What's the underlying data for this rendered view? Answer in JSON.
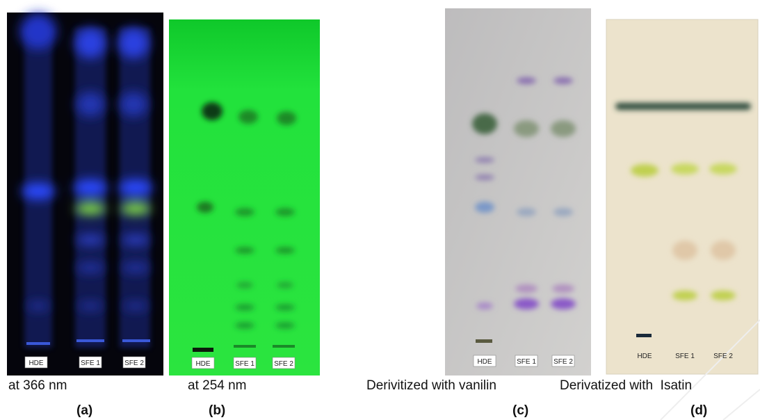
{
  "panels": [
    {
      "caption": "at 366 nm",
      "letter": "(a)",
      "lanes": [
        "HDE",
        "SFE 1",
        "SFE 2"
      ]
    },
    {
      "caption": "at 254 nm",
      "letter": "(b)",
      "lanes": [
        "HDE",
        "SFE 1",
        "SFE 2"
      ]
    },
    {
      "caption": "Derivitized with vanilin",
      "letter": "(c)",
      "lanes": [
        "HDE",
        "SFE 1",
        "SFE 2"
      ]
    },
    {
      "caption": "Derivatized with  Isatin",
      "letter": "(d)",
      "lanes": [
        "HDE",
        "SFE 1",
        "SFE 2"
      ]
    }
  ]
}
